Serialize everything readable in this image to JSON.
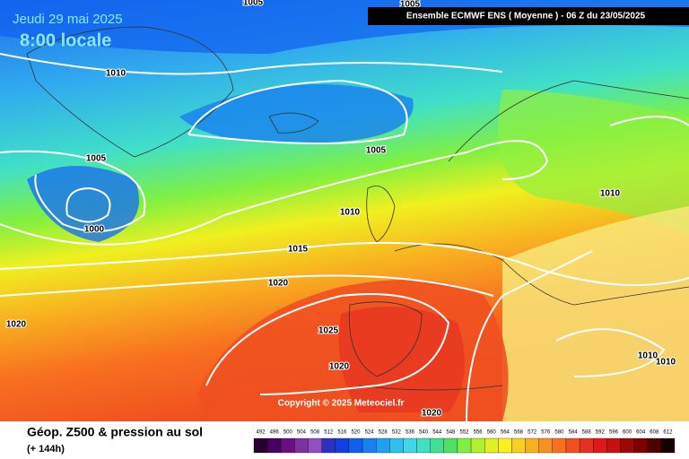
{
  "header": {
    "date": "Jeudi 29 mai 2025",
    "time": "8:00 locale",
    "model": "Ensemble ECMWF ENS  ( Moyenne )  -  06 Z du 23/05/2025"
  },
  "isobar_labels": [
    "1005",
    "1010",
    "1005",
    "1000",
    "1005",
    "1005",
    "1010",
    "1015",
    "1020",
    "1020",
    "1025",
    "1020",
    "1020",
    "1010",
    "1010",
    "1010"
  ],
  "copyright": "Copyright © 2025 Meteociel.fr",
  "footer": {
    "title": "Géop. Z500 & pression au sol",
    "subtitle": "(+ 144h)"
  },
  "legend": {
    "labels": [
      492,
      496,
      500,
      504,
      508,
      512,
      516,
      520,
      524,
      528,
      532,
      536,
      540,
      544,
      548,
      552,
      556,
      560,
      564,
      568,
      572,
      576,
      580,
      584,
      588,
      592,
      596,
      600,
      604,
      608,
      612
    ],
    "colors": [
      "#2a0030",
      "#4a0060",
      "#6a1080",
      "#8030a0",
      "#9050c0",
      "#3030c0",
      "#1040e0",
      "#1060f0",
      "#1880f0",
      "#20a0f0",
      "#30c0f0",
      "#40d8e8",
      "#40e0c0",
      "#40e090",
      "#50e060",
      "#80f040",
      "#b0f030",
      "#e0f020",
      "#f8f020",
      "#f8d020",
      "#f8b020",
      "#f89020",
      "#f87020",
      "#f05020",
      "#e83020",
      "#e01818",
      "#c81010",
      "#a00808",
      "#800000",
      "#500000",
      "#180000"
    ]
  }
}
